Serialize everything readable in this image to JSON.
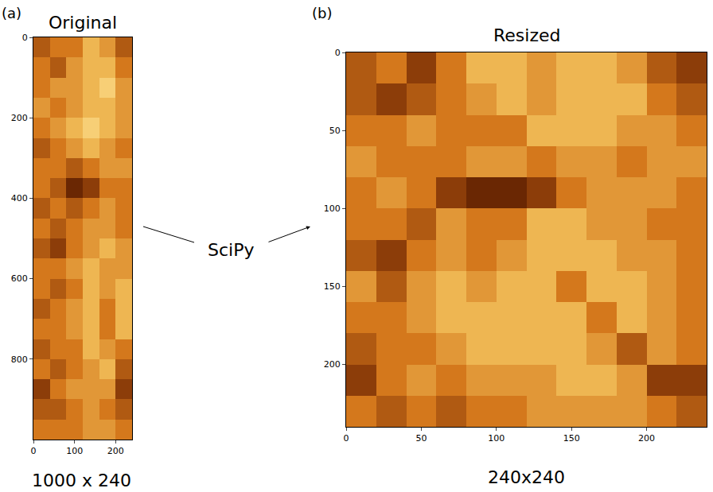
{
  "chart_data": [
    {
      "type": "heatmap",
      "panel": "(a)",
      "title": "Original",
      "caption": "1000 x 240",
      "x": [
        20,
        60,
        100,
        140,
        180,
        220
      ],
      "y": [
        25,
        75,
        125,
        175,
        225,
        275,
        325,
        375,
        425,
        475,
        525,
        575,
        625,
        675,
        725,
        775,
        825,
        875,
        925,
        975
      ],
      "z": [
        [
          0.6,
          0.5,
          0.5,
          0.3,
          0.4,
          0.6
        ],
        [
          0.5,
          0.6,
          0.4,
          0.3,
          0.3,
          0.5
        ],
        [
          0.5,
          0.4,
          0.4,
          0.3,
          0.2,
          0.4
        ],
        [
          0.4,
          0.5,
          0.4,
          0.3,
          0.3,
          0.4
        ],
        [
          0.5,
          0.4,
          0.3,
          0.2,
          0.3,
          0.4
        ],
        [
          0.6,
          0.5,
          0.4,
          0.3,
          0.4,
          0.5
        ],
        [
          0.5,
          0.5,
          0.6,
          0.5,
          0.4,
          0.4
        ],
        [
          0.5,
          0.6,
          0.8,
          0.7,
          0.5,
          0.5
        ],
        [
          0.6,
          0.5,
          0.6,
          0.5,
          0.4,
          0.5
        ],
        [
          0.5,
          0.6,
          0.5,
          0.4,
          0.4,
          0.5
        ],
        [
          0.6,
          0.7,
          0.5,
          0.4,
          0.3,
          0.4
        ],
        [
          0.5,
          0.5,
          0.4,
          0.3,
          0.4,
          0.4
        ],
        [
          0.5,
          0.6,
          0.5,
          0.3,
          0.4,
          0.3
        ],
        [
          0.6,
          0.5,
          0.4,
          0.3,
          0.5,
          0.3
        ],
        [
          0.5,
          0.5,
          0.4,
          0.3,
          0.5,
          0.3
        ],
        [
          0.6,
          0.5,
          0.5,
          0.3,
          0.4,
          0.5
        ],
        [
          0.5,
          0.6,
          0.5,
          0.4,
          0.3,
          0.6
        ],
        [
          0.7,
          0.5,
          0.4,
          0.4,
          0.4,
          0.7
        ],
        [
          0.6,
          0.6,
          0.5,
          0.4,
          0.5,
          0.6
        ],
        [
          0.5,
          0.5,
          0.5,
          0.4,
          0.4,
          0.5
        ]
      ],
      "zlim": [
        0,
        1
      ],
      "colors": [
        "#fff8d0",
        "#f5c560",
        "#d4781c",
        "#7a2e04",
        "#2a0a00"
      ],
      "xlim": [
        0,
        240
      ],
      "ylim": [
        1000,
        0
      ],
      "xticks": [
        0,
        100,
        200
      ],
      "yticks": [
        0,
        200,
        400,
        600,
        800
      ]
    },
    {
      "type": "heatmap",
      "panel": "(b)",
      "title": "Resized",
      "caption": "240x240",
      "x": [
        10,
        30,
        50,
        70,
        90,
        110,
        130,
        150,
        170,
        190,
        210,
        230
      ],
      "y": [
        10,
        30,
        50,
        70,
        90,
        110,
        130,
        150,
        170,
        190,
        210,
        230
      ],
      "z": [
        [
          0.6,
          0.5,
          0.7,
          0.5,
          0.3,
          0.3,
          0.4,
          0.3,
          0.3,
          0.4,
          0.6,
          0.7
        ],
        [
          0.6,
          0.7,
          0.6,
          0.5,
          0.4,
          0.3,
          0.4,
          0.3,
          0.3,
          0.3,
          0.5,
          0.6
        ],
        [
          0.5,
          0.5,
          0.4,
          0.5,
          0.5,
          0.5,
          0.3,
          0.3,
          0.3,
          0.4,
          0.4,
          0.5
        ],
        [
          0.4,
          0.5,
          0.5,
          0.5,
          0.4,
          0.4,
          0.5,
          0.4,
          0.4,
          0.5,
          0.4,
          0.4
        ],
        [
          0.5,
          0.4,
          0.5,
          0.7,
          0.8,
          0.8,
          0.7,
          0.5,
          0.4,
          0.4,
          0.4,
          0.5
        ],
        [
          0.5,
          0.5,
          0.6,
          0.4,
          0.5,
          0.5,
          0.3,
          0.3,
          0.4,
          0.4,
          0.5,
          0.5
        ],
        [
          0.6,
          0.7,
          0.5,
          0.4,
          0.5,
          0.4,
          0.3,
          0.3,
          0.3,
          0.4,
          0.4,
          0.5
        ],
        [
          0.4,
          0.6,
          0.4,
          0.3,
          0.4,
          0.3,
          0.3,
          0.5,
          0.3,
          0.3,
          0.4,
          0.5
        ],
        [
          0.5,
          0.5,
          0.4,
          0.3,
          0.3,
          0.3,
          0.3,
          0.3,
          0.5,
          0.3,
          0.4,
          0.5
        ],
        [
          0.6,
          0.5,
          0.5,
          0.4,
          0.3,
          0.3,
          0.3,
          0.3,
          0.4,
          0.6,
          0.4,
          0.5
        ],
        [
          0.7,
          0.5,
          0.4,
          0.5,
          0.4,
          0.4,
          0.4,
          0.3,
          0.3,
          0.4,
          0.7,
          0.7
        ],
        [
          0.5,
          0.6,
          0.5,
          0.6,
          0.5,
          0.5,
          0.4,
          0.4,
          0.4,
          0.4,
          0.5,
          0.6
        ]
      ],
      "zlim": [
        0,
        1
      ],
      "colors": [
        "#fff8d0",
        "#f5c560",
        "#d4781c",
        "#7a2e04",
        "#2a0a00"
      ],
      "xlim": [
        0,
        240
      ],
      "ylim": [
        240,
        0
      ],
      "xticks": [
        0,
        50,
        100,
        150,
        200
      ],
      "yticks": [
        0,
        50,
        100,
        150,
        200
      ]
    }
  ],
  "arrow_label": "SciPy"
}
